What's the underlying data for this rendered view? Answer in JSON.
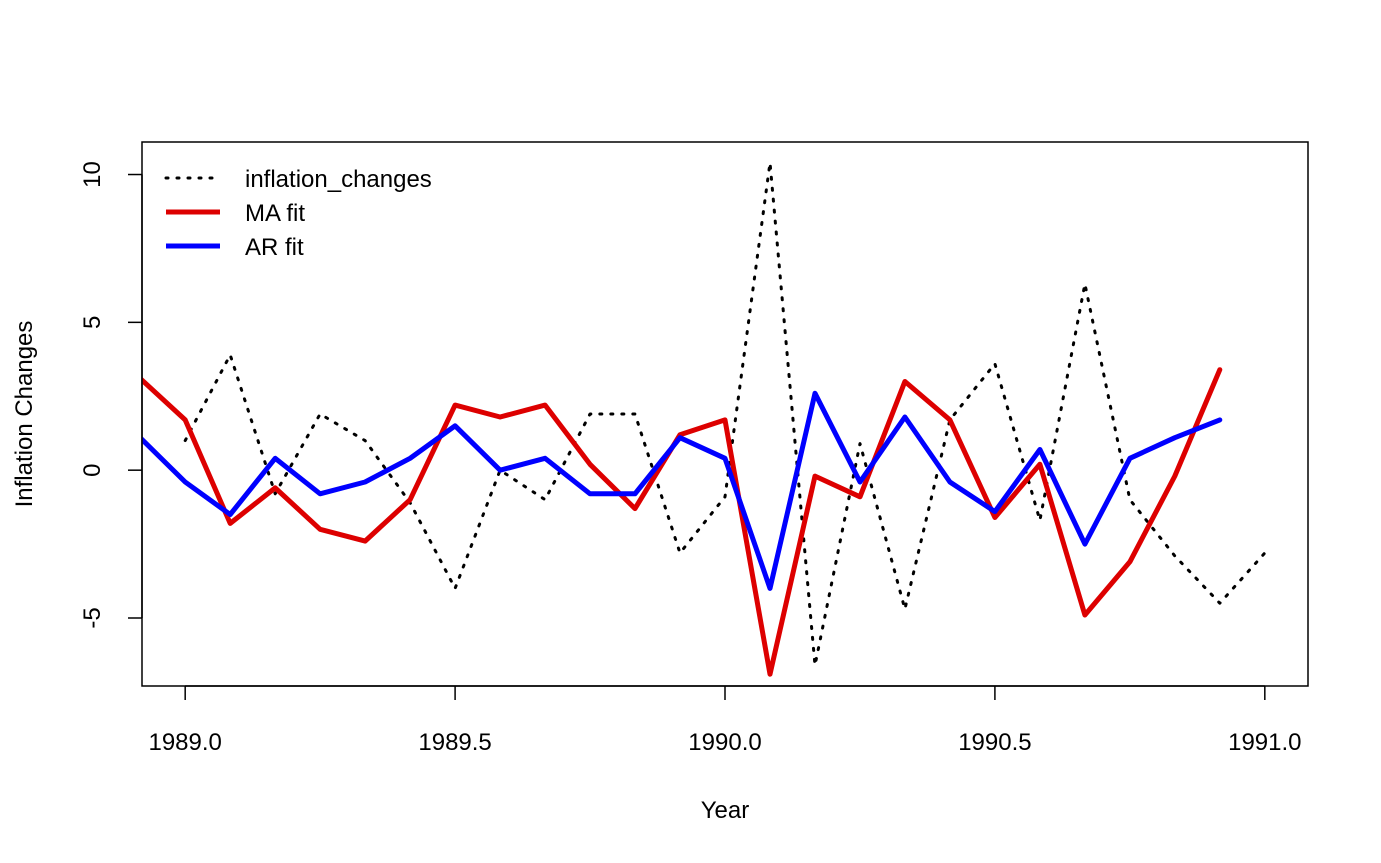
{
  "chart_data": {
    "type": "line",
    "xlabel": "Year",
    "ylabel": "Inflation Changes",
    "xlim": [
      1988.92,
      1991.08
    ],
    "ylim": [
      -7.3,
      11.1
    ],
    "x_ticks": [
      1989.0,
      1989.5,
      1990.0,
      1990.5,
      1991.0
    ],
    "x_tick_labels": [
      "1989.0",
      "1989.5",
      "1990.0",
      "1990.5",
      "1991.0"
    ],
    "y_ticks": [
      -5,
      0,
      5,
      10
    ],
    "y_tick_labels": [
      "-5",
      "0",
      "5",
      "10"
    ],
    "grid": false,
    "legend": {
      "position": "top-left",
      "entries": [
        {
          "label": "inflation_changes",
          "color": "#000000",
          "style": "dotted"
        },
        {
          "label": "MA fit",
          "color": "#dd0000",
          "style": "solid"
        },
        {
          "label": "AR fit",
          "color": "#0000ff",
          "style": "solid"
        }
      ]
    },
    "series": [
      {
        "name": "inflation_changes",
        "color": "#000000",
        "style": "dotted",
        "x": [
          1989.0,
          1989.0833,
          1989.1667,
          1989.25,
          1989.3333,
          1989.4167,
          1989.5,
          1989.5833,
          1989.6667,
          1989.75,
          1989.8333,
          1989.9167,
          1990.0,
          1990.0833,
          1990.1667,
          1990.25,
          1990.3333,
          1990.4167,
          1990.5,
          1990.5833,
          1990.6667,
          1990.75,
          1990.8333,
          1990.9167,
          1991.0
        ],
        "values": [
          1.0,
          3.9,
          -0.8,
          1.9,
          1.0,
          -1.1,
          -4.0,
          0.0,
          -1.0,
          1.9,
          1.9,
          -2.8,
          -0.9,
          10.4,
          -6.6,
          0.9,
          -4.7,
          1.7,
          3.6,
          -1.7,
          6.3,
          -1.0,
          -2.9,
          -4.5,
          -2.8
        ]
      },
      {
        "name": "MA fit",
        "color": "#dd0000",
        "style": "solid",
        "x": [
          1988.9167,
          1989.0,
          1989.0833,
          1989.1667,
          1989.25,
          1989.3333,
          1989.4167,
          1989.5,
          1989.5833,
          1989.6667,
          1989.75,
          1989.8333,
          1989.9167,
          1990.0,
          1990.0833,
          1990.1667,
          1990.25,
          1990.3333,
          1990.4167,
          1990.5,
          1990.5833,
          1990.6667,
          1990.75,
          1990.8333,
          1990.9167
        ],
        "values": [
          3.1,
          1.7,
          -1.8,
          -0.6,
          -2.0,
          -2.4,
          -1.0,
          2.2,
          1.8,
          2.2,
          0.2,
          -1.3,
          1.2,
          1.7,
          -6.9,
          -0.2,
          -0.9,
          3.0,
          1.7,
          -1.6,
          0.2,
          -4.9,
          -3.1,
          -0.2,
          3.4
        ]
      },
      {
        "name": "AR fit",
        "color": "#0000ff",
        "style": "solid",
        "x": [
          1988.9167,
          1989.0,
          1989.0833,
          1989.1667,
          1989.25,
          1989.3333,
          1989.4167,
          1989.5,
          1989.5833,
          1989.6667,
          1989.75,
          1989.8333,
          1989.9167,
          1990.0,
          1990.0833,
          1990.1667,
          1990.25,
          1990.3333,
          1990.4167,
          1990.5,
          1990.5833,
          1990.6667,
          1990.75,
          1990.8333,
          1990.9167
        ],
        "values": [
          1.1,
          -0.4,
          -1.5,
          0.4,
          -0.8,
          -0.4,
          0.4,
          1.5,
          0.0,
          0.4,
          -0.8,
          -0.8,
          1.1,
          0.4,
          -4.0,
          2.6,
          -0.4,
          1.8,
          -0.4,
          -1.4,
          0.7,
          -2.5,
          0.4,
          1.1,
          1.7
        ]
      }
    ]
  }
}
